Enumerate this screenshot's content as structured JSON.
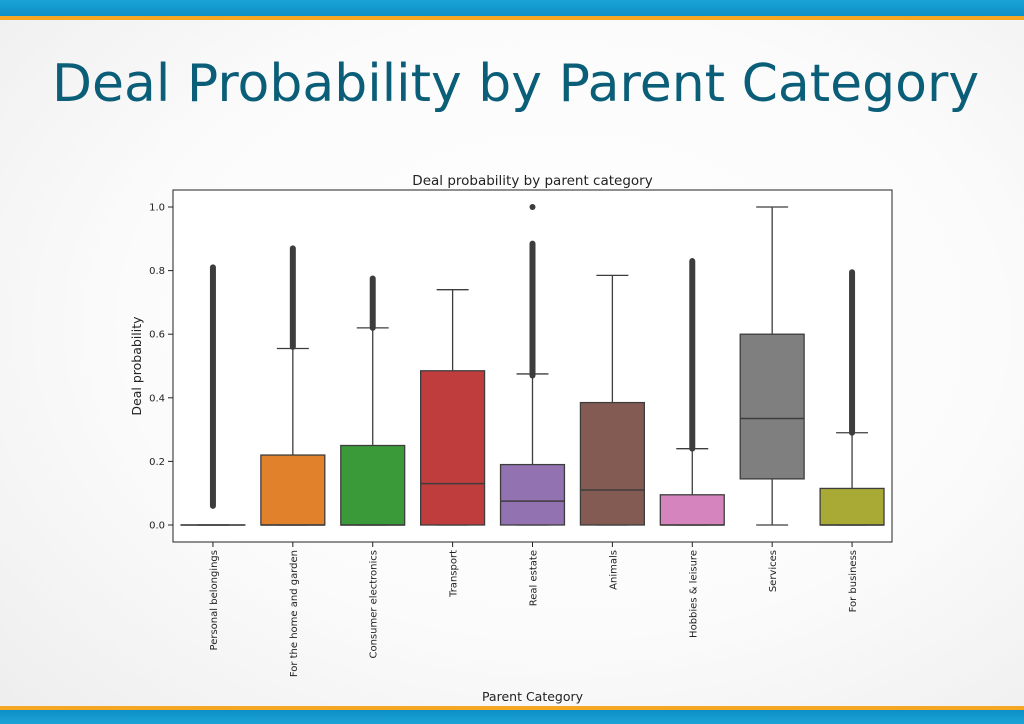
{
  "slide": {
    "title": "Deal Probability by Parent Category"
  },
  "chart_data": {
    "type": "box",
    "title": "Deal probability by parent category",
    "xlabel": "Parent Category",
    "ylabel": "Deal probability",
    "ylim": [
      -0.05,
      1.05
    ],
    "yticks": [
      "0.0",
      "0.2",
      "0.4",
      "0.6",
      "0.8",
      "1.0"
    ],
    "grid": false,
    "categories": [
      "Personal belongings",
      "For the home and garden",
      "Consumer electronics",
      "Transport",
      "Real estate",
      "Animals",
      "Hobbies & leisure",
      "Services",
      "For business"
    ],
    "colors": [
      "#3a7abf",
      "#e1812c",
      "#3a9a3a",
      "#c03d3e",
      "#9372b2",
      "#845b53",
      "#d684bd",
      "#7f7f7f",
      "#a9aa35"
    ],
    "boxes": [
      {
        "min": 0.0,
        "q1": 0.0,
        "median": 0.0,
        "q3": 0.0,
        "max": 0.0,
        "outliers": [
          [
            0.06,
            0.81
          ]
        ]
      },
      {
        "min": 0.0,
        "q1": 0.0,
        "median": 0.0,
        "q3": 0.22,
        "max": 0.555,
        "outliers": [
          [
            0.56,
            0.87
          ]
        ]
      },
      {
        "min": 0.0,
        "q1": 0.0,
        "median": 0.0,
        "q3": 0.25,
        "max": 0.62,
        "outliers": [
          [
            0.62,
            0.775
          ]
        ]
      },
      {
        "min": 0.0,
        "q1": 0.0,
        "median": 0.13,
        "q3": 0.485,
        "max": 0.74,
        "outliers": []
      },
      {
        "min": 0.0,
        "q1": 0.0,
        "median": 0.075,
        "q3": 0.19,
        "max": 0.475,
        "outliers": [
          [
            0.47,
            0.885
          ],
          [
            1.0,
            1.0
          ]
        ]
      },
      {
        "min": 0.0,
        "q1": 0.0,
        "median": 0.11,
        "q3": 0.385,
        "max": 0.785,
        "outliers": []
      },
      {
        "min": 0.0,
        "q1": 0.0,
        "median": 0.0,
        "q3": 0.095,
        "max": 0.24,
        "outliers": [
          [
            0.24,
            0.83
          ]
        ]
      },
      {
        "min": 0.0,
        "q1": 0.145,
        "median": 0.335,
        "q3": 0.6,
        "max": 1.0,
        "outliers": []
      },
      {
        "min": 0.0,
        "q1": 0.0,
        "median": 0.0,
        "q3": 0.115,
        "max": 0.29,
        "outliers": [
          [
            0.29,
            0.795
          ]
        ]
      }
    ]
  }
}
